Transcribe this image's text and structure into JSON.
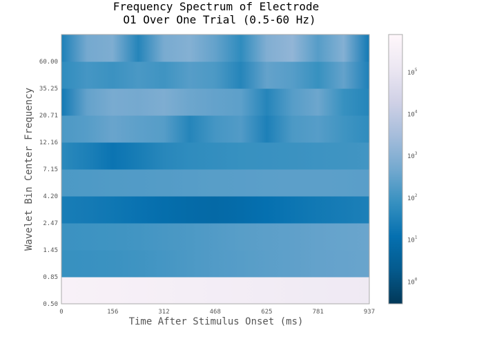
{
  "chart_data": {
    "type": "heatmap",
    "title": "Frequency Spectrum of Electrode\nO1 Over One Trial (0.5-60 Hz)",
    "xlabel": "Time After Stimulus Onset (ms)",
    "ylabel": "Wavelet Bin Center Frequency",
    "x_ticks": [
      "0",
      "156",
      "312",
      "468",
      "625",
      "781",
      "937"
    ],
    "xlim": [
      0,
      937
    ],
    "y_ticks": [
      "0.50",
      "0.85",
      "1.45",
      "2.47",
      "4.20",
      "7.15",
      "12.16",
      "20.71",
      "35.25",
      "60.00"
    ],
    "colorbar": {
      "scale": "log",
      "range": [
        0.3,
        800000
      ],
      "ticks": [
        {
          "base": "10",
          "exp": "0",
          "value": 1
        },
        {
          "base": "10",
          "exp": "1",
          "value": 10
        },
        {
          "base": "10",
          "exp": "2",
          "value": 100
        },
        {
          "base": "10",
          "exp": "3",
          "value": 1000
        },
        {
          "base": "10",
          "exp": "4",
          "value": 10000
        },
        {
          "base": "10",
          "exp": "5",
          "value": 100000
        }
      ],
      "colormap": [
        "#023858",
        "#045a8d",
        "#0570b0",
        "#3690c0",
        "#74a9cf",
        "#a6bddb",
        "#d0d1e6",
        "#ece7f2",
        "#fff7fb"
      ]
    },
    "time_points": [
      0,
      78,
      156,
      234,
      312,
      390,
      468,
      546,
      625,
      703,
      781,
      859,
      937
    ],
    "rows": [
      {
        "bin": "0.50-0.85",
        "values": [
          400000,
          380000,
          360000,
          330000,
          300000,
          280000,
          260000,
          240000,
          220000,
          200000,
          190000,
          180000,
          170000
        ]
      },
      {
        "bin": "0.85-1.45",
        "values": [
          80,
          85,
          90,
          100,
          120,
          150,
          180,
          200,
          230,
          260,
          300,
          320,
          350
        ]
      },
      {
        "bin": "1.45-2.47",
        "values": [
          90,
          95,
          100,
          110,
          130,
          150,
          180,
          210,
          240,
          260,
          300,
          330,
          360
        ]
      },
      {
        "bin": "2.47-4.20",
        "values": [
          25,
          22,
          18,
          14,
          10,
          8,
          7,
          9,
          12,
          16,
          20,
          24,
          30
        ]
      },
      {
        "bin": "4.20-7.15",
        "values": [
          150,
          160,
          170,
          180,
          190,
          200,
          210,
          220,
          230,
          240,
          240,
          230,
          220
        ]
      },
      {
        "bin": "7.15-12.16",
        "values": [
          50,
          30,
          15,
          25,
          45,
          60,
          70,
          80,
          85,
          90,
          95,
          100,
          110
        ]
      },
      {
        "bin": "12.16-20.71",
        "values": [
          150,
          200,
          350,
          250,
          200,
          40,
          120,
          180,
          30,
          150,
          200,
          100,
          60
        ]
      },
      {
        "bin": "20.71-35.25",
        "values": [
          20,
          300,
          600,
          500,
          700,
          400,
          300,
          250,
          40,
          200,
          400,
          80,
          40
        ]
      },
      {
        "bin": "35.25-60.00",
        "values": [
          60,
          120,
          90,
          140,
          100,
          200,
          150,
          40,
          300,
          200,
          80,
          300,
          30
        ]
      },
      {
        "bin": "60.00+",
        "values": [
          30,
          500,
          700,
          40,
          600,
          900,
          300,
          60,
          800,
          1500,
          200,
          900,
          20
        ]
      }
    ]
  }
}
